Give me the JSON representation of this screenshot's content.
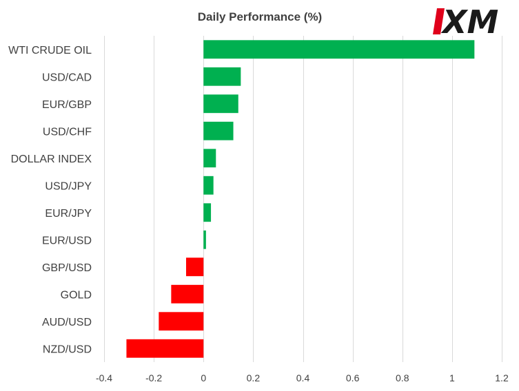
{
  "chart_data": {
    "type": "bar",
    "orientation": "horizontal",
    "title": "Daily Performance (%)",
    "xlabel": "",
    "ylabel": "",
    "categories": [
      "WTI CRUDE OIL",
      "USD/CAD",
      "EUR/GBP",
      "USD/CHF",
      "DOLLAR INDEX",
      "USD/JPY",
      "EUR/JPY",
      "EUR/USD",
      "GBP/USD",
      "GOLD",
      "AUD/USD",
      "NZD/USD"
    ],
    "values": [
      1.09,
      0.15,
      0.14,
      0.12,
      0.05,
      0.04,
      0.03,
      0.01,
      -0.07,
      -0.13,
      -0.18,
      -0.31
    ],
    "xlim": [
      -0.4,
      1.2
    ],
    "xticks": [
      -0.4,
      -0.2,
      0,
      0.2,
      0.4,
      0.6,
      0.8,
      1,
      1.2
    ],
    "xtick_labels": [
      "-0.4",
      "-0.2",
      "0",
      "0.2",
      "0.4",
      "0.6",
      "0.8",
      "1",
      "1.2"
    ],
    "grid": "vertical",
    "legend": "none",
    "colors": {
      "positive": "#00b050",
      "negative": "#ff0000",
      "grid": "#d9d9d9",
      "text": "#404040"
    }
  },
  "logo": {
    "text": "XM",
    "accent_color": "#e0001b",
    "text_color": "#1a1a1a"
  }
}
